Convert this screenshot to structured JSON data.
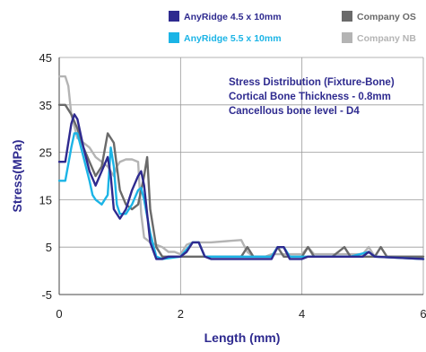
{
  "chart_data": {
    "type": "line",
    "title": "",
    "xlabel": "Length (mm)",
    "ylabel": "Stress(MPa)",
    "xlim": [
      0,
      6
    ],
    "ylim": [
      -5,
      45
    ],
    "xticks": [
      0,
      2,
      4,
      6
    ],
    "yticks": [
      -5,
      5,
      15,
      25,
      35,
      45
    ],
    "x_tick_labels": [
      "0",
      "2",
      "4",
      "6"
    ],
    "y_tick_labels": [
      "-5",
      "5",
      "15",
      "25",
      "35",
      "45"
    ],
    "grid": {
      "vertical": true,
      "horizontal": true
    },
    "legend_position": "top",
    "annotation": [
      "Stress Distribution (Fixture-Bone)",
      "Cortical Bone Thickness - 0.8mm",
      "Cancellous bone level - D4"
    ],
    "colors": {
      "annotation": "#2e2a8f",
      "ylabel": "#2e2a8f",
      "xlabel": "#2e2a8f",
      "axis": "#444444",
      "grid": "#9a9a9a"
    },
    "series": [
      {
        "name": "Company OS",
        "color": "#6a6a6a",
        "points": [
          [
            0,
            35
          ],
          [
            0.1,
            35
          ],
          [
            0.2,
            33
          ],
          [
            0.3,
            30
          ],
          [
            0.4,
            26
          ],
          [
            0.5,
            23
          ],
          [
            0.6,
            20
          ],
          [
            0.7,
            22
          ],
          [
            0.8,
            29
          ],
          [
            0.9,
            27
          ],
          [
            1.0,
            17
          ],
          [
            1.1,
            14
          ],
          [
            1.2,
            13
          ],
          [
            1.3,
            14
          ],
          [
            1.4,
            20
          ],
          [
            1.45,
            24
          ],
          [
            1.5,
            13
          ],
          [
            1.6,
            5
          ],
          [
            1.7,
            3
          ],
          [
            2.0,
            3
          ],
          [
            2.3,
            3
          ],
          [
            2.5,
            3
          ],
          [
            3.0,
            3
          ],
          [
            3.1,
            5
          ],
          [
            3.2,
            3
          ],
          [
            3.5,
            3
          ],
          [
            3.6,
            5
          ],
          [
            3.7,
            3
          ],
          [
            4.0,
            3
          ],
          [
            4.1,
            5
          ],
          [
            4.2,
            3
          ],
          [
            4.5,
            3
          ],
          [
            4.7,
            5
          ],
          [
            4.8,
            3
          ],
          [
            5.0,
            3
          ],
          [
            5.2,
            3
          ],
          [
            5.3,
            5
          ],
          [
            5.4,
            3
          ],
          [
            6.0,
            3
          ]
        ]
      },
      {
        "name": "Company NB",
        "color": "#b4b4b4",
        "points": [
          [
            0,
            41
          ],
          [
            0.1,
            41
          ],
          [
            0.15,
            39
          ],
          [
            0.2,
            33
          ],
          [
            0.3,
            28
          ],
          [
            0.4,
            27
          ],
          [
            0.5,
            26
          ],
          [
            0.6,
            24
          ],
          [
            0.7,
            23
          ],
          [
            0.8,
            22
          ],
          [
            0.9,
            20
          ],
          [
            0.95,
            22
          ],
          [
            1.0,
            23
          ],
          [
            1.1,
            23.5
          ],
          [
            1.2,
            23.5
          ],
          [
            1.3,
            23
          ],
          [
            1.35,
            12
          ],
          [
            1.4,
            7
          ],
          [
            1.5,
            6
          ],
          [
            1.6,
            5.5
          ],
          [
            1.7,
            5
          ],
          [
            1.8,
            4
          ],
          [
            1.9,
            4
          ],
          [
            2.0,
            3.5
          ],
          [
            2.1,
            5.5
          ],
          [
            2.2,
            6
          ],
          [
            2.5,
            6
          ],
          [
            3.0,
            6.5
          ],
          [
            3.1,
            4
          ],
          [
            3.2,
            3
          ],
          [
            3.4,
            3
          ],
          [
            3.5,
            3.5
          ],
          [
            4.0,
            3.5
          ],
          [
            4.1,
            5
          ],
          [
            4.2,
            3.5
          ],
          [
            5.0,
            3.5
          ],
          [
            5.1,
            5
          ],
          [
            5.2,
            3
          ],
          [
            6.0,
            3
          ]
        ]
      },
      {
        "name": "AnyRidge 4.5 x 10mm",
        "color": "#2e2a8f",
        "points": [
          [
            0,
            23
          ],
          [
            0.1,
            23
          ],
          [
            0.2,
            31
          ],
          [
            0.25,
            33
          ],
          [
            0.3,
            32
          ],
          [
            0.4,
            26
          ],
          [
            0.5,
            21
          ],
          [
            0.6,
            18
          ],
          [
            0.7,
            21
          ],
          [
            0.8,
            24
          ],
          [
            0.85,
            20
          ],
          [
            0.9,
            13
          ],
          [
            1.0,
            11
          ],
          [
            1.1,
            13
          ],
          [
            1.2,
            17
          ],
          [
            1.3,
            20
          ],
          [
            1.35,
            21
          ],
          [
            1.4,
            18
          ],
          [
            1.45,
            12
          ],
          [
            1.5,
            6
          ],
          [
            1.6,
            2.5
          ],
          [
            1.7,
            2.5
          ],
          [
            1.8,
            3
          ],
          [
            2.0,
            3
          ],
          [
            2.1,
            4
          ],
          [
            2.2,
            6
          ],
          [
            2.3,
            6
          ],
          [
            2.4,
            3
          ],
          [
            2.5,
            2.5
          ],
          [
            3.0,
            2.5
          ],
          [
            3.5,
            2.5
          ],
          [
            3.6,
            5
          ],
          [
            3.7,
            5
          ],
          [
            3.8,
            2.5
          ],
          [
            4.0,
            2.5
          ],
          [
            4.1,
            3
          ],
          [
            4.5,
            3
          ],
          [
            5.0,
            3
          ],
          [
            5.1,
            4
          ],
          [
            5.2,
            3
          ],
          [
            6.0,
            2.5
          ]
        ]
      },
      {
        "name": "AnyRidge 5.5 x 10mm",
        "color": "#1bb4e6",
        "points": [
          [
            0,
            19
          ],
          [
            0.1,
            19
          ],
          [
            0.2,
            26
          ],
          [
            0.25,
            29
          ],
          [
            0.3,
            29
          ],
          [
            0.4,
            24
          ],
          [
            0.5,
            19
          ],
          [
            0.55,
            16
          ],
          [
            0.6,
            15
          ],
          [
            0.7,
            14
          ],
          [
            0.8,
            16
          ],
          [
            0.85,
            26
          ],
          [
            0.9,
            22
          ],
          [
            0.95,
            14
          ],
          [
            1.0,
            12
          ],
          [
            1.1,
            12
          ],
          [
            1.2,
            14
          ],
          [
            1.3,
            17
          ],
          [
            1.35,
            17.5
          ],
          [
            1.4,
            15
          ],
          [
            1.5,
            8
          ],
          [
            1.6,
            3
          ],
          [
            1.7,
            2.5
          ],
          [
            2.0,
            3
          ],
          [
            2.1,
            4.5
          ],
          [
            2.2,
            6
          ],
          [
            2.3,
            6
          ],
          [
            2.4,
            3
          ],
          [
            3.5,
            3
          ],
          [
            3.6,
            5
          ],
          [
            3.7,
            5
          ],
          [
            3.8,
            3
          ],
          [
            4.5,
            3
          ],
          [
            4.8,
            3
          ],
          [
            5.1,
            4
          ],
          [
            5.2,
            3
          ],
          [
            6.0,
            2.5
          ]
        ]
      }
    ]
  }
}
